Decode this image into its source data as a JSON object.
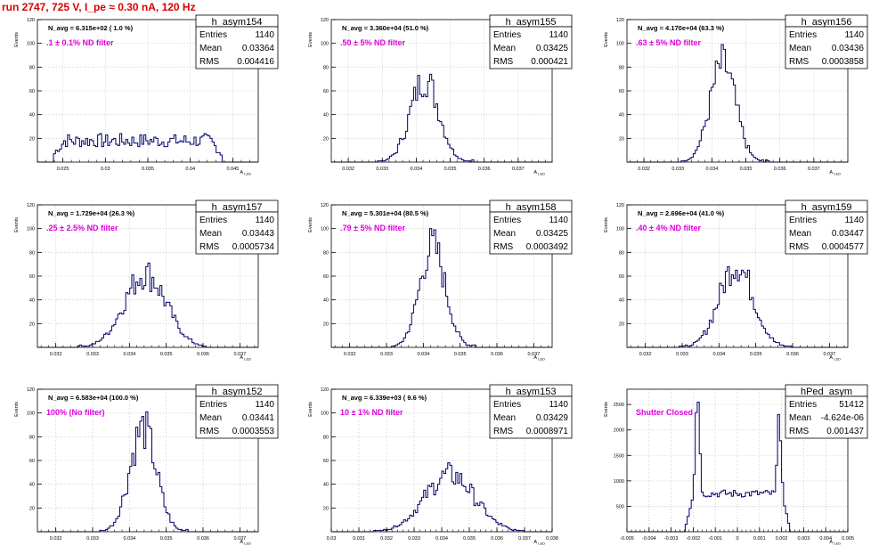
{
  "title": "run 2747,   725 V, I_pe ≈ 0.30 nA, 120 Hz",
  "colors": {
    "title": "#d60000",
    "histogram": "#00006e",
    "annotation": "#e000e0",
    "grid": "#c8c8c8",
    "frame": "#000000"
  },
  "stats_labels": [
    "Entries",
    "Mean",
    "RMS"
  ],
  "axis_label_y": "Events",
  "axis_label_x": "A",
  "axis_label_x_sub": "LED",
  "chart_data": [
    {
      "type": "histogram",
      "name": "h_asym154",
      "nav": "N_avg = 6.315e+02 ( 1.0 %)",
      "annotation": ".1 ± 0.1% ND filter",
      "stats": {
        "Entries": "1140",
        "Mean": "0.03364",
        "RMS": "0.004416"
      },
      "xlim": [
        0.022,
        0.048
      ],
      "ylim": [
        0,
        120
      ],
      "xticks": [
        "0.025",
        "0.03",
        "0.035",
        "0.04",
        "0.045"
      ],
      "xtick_values": [
        0.025,
        0.03,
        0.035,
        0.04,
        0.045
      ],
      "yticks": [
        "20",
        "40",
        "60",
        "80",
        "100",
        "120"
      ],
      "ytick_values": [
        20,
        40,
        60,
        80,
        100,
        120
      ],
      "shape": {
        "kind": "flat",
        "lo": 0.0238,
        "hi": 0.0438,
        "level": 18,
        "ripple": 6
      },
      "grid": true
    },
    {
      "type": "histogram",
      "name": "h_asym155",
      "nav": "N_avg = 3.360e+04 (51.0 %)",
      "annotation": ".50 ± 5% ND filter",
      "stats": {
        "Entries": "1140",
        "Mean": "0.03425",
        "RMS": "0.000421"
      },
      "xlim": [
        0.0315,
        0.038
      ],
      "ylim": [
        0,
        120
      ],
      "xticks": [
        "0.032",
        "0.033",
        "0.034",
        "0.035",
        "0.036",
        "0.037"
      ],
      "xtick_values": [
        0.032,
        0.033,
        0.034,
        0.035,
        0.036,
        0.037
      ],
      "yticks": [
        "20",
        "40",
        "60",
        "80",
        "100",
        "120"
      ],
      "ytick_values": [
        20,
        40,
        60,
        80,
        100,
        120
      ],
      "shape": {
        "kind": "gauss",
        "mean": 0.03425,
        "sigma": 0.00042,
        "peak": 70,
        "lo": 0.0328,
        "hi": 0.0357
      },
      "grid": true
    },
    {
      "type": "histogram",
      "name": "h_asym156",
      "nav": "N_avg = 4.170e+04 (63.3 %)",
      "annotation": ".63 ± 5% ND filter",
      "stats": {
        "Entries": "1140",
        "Mean": "0.03436",
        "RMS": "0.0003858"
      },
      "xlim": [
        0.0315,
        0.038
      ],
      "ylim": [
        0,
        120
      ],
      "xticks": [
        "0.032",
        "0.033",
        "0.034",
        "0.035",
        "0.036",
        "0.037"
      ],
      "xtick_values": [
        0.032,
        0.033,
        0.034,
        0.035,
        0.036,
        0.037
      ],
      "yticks": [
        "20",
        "40",
        "60",
        "80",
        "100",
        "120"
      ],
      "ytick_values": [
        20,
        40,
        60,
        80,
        100,
        120
      ],
      "shape": {
        "kind": "gauss",
        "mean": 0.03432,
        "sigma": 0.00038,
        "peak": 82,
        "lo": 0.0331,
        "hi": 0.0357
      },
      "grid": true
    },
    {
      "type": "histogram",
      "name": "h_asym157",
      "nav": "N_avg = 1.729e+04 (26.3 %)",
      "annotation": ".25 ± 2.5% ND filter",
      "stats": {
        "Entries": "1140",
        "Mean": "0.03443",
        "RMS": "0.0005734"
      },
      "xlim": [
        0.0315,
        0.0375
      ],
      "ylim": [
        0,
        120
      ],
      "xticks": [
        "0.032",
        "0.033",
        "0.034",
        "0.035",
        "0.036",
        "0.037"
      ],
      "xtick_values": [
        0.032,
        0.033,
        0.034,
        0.035,
        0.036,
        0.037
      ],
      "yticks": [
        "20",
        "40",
        "60",
        "80",
        "100",
        "120"
      ],
      "ytick_values": [
        20,
        40,
        60,
        80,
        100,
        120
      ],
      "shape": {
        "kind": "gauss",
        "mean": 0.03443,
        "sigma": 0.00057,
        "peak": 62,
        "lo": 0.0326,
        "hi": 0.0361
      },
      "grid": true
    },
    {
      "type": "histogram",
      "name": "h_asym158",
      "nav": "N_avg = 5.301e+04 (80.5 %)",
      "annotation": ".79 ± 5% ND filter",
      "stats": {
        "Entries": "1140",
        "Mean": "0.03425",
        "RMS": "0.0003492"
      },
      "xlim": [
        0.0315,
        0.0375
      ],
      "ylim": [
        0,
        120
      ],
      "xticks": [
        "0.032",
        "0.033",
        "0.034",
        "0.035",
        "0.036",
        "0.037"
      ],
      "xtick_values": [
        0.032,
        0.033,
        0.034,
        0.035,
        0.036,
        0.037
      ],
      "yticks": [
        "20",
        "40",
        "60",
        "80",
        "100",
        "120"
      ],
      "ytick_values": [
        20,
        40,
        60,
        80,
        100,
        120
      ],
      "shape": {
        "kind": "gauss",
        "mean": 0.03425,
        "sigma": 0.00035,
        "peak": 85,
        "lo": 0.0331,
        "hi": 0.0355
      },
      "grid": true
    },
    {
      "type": "histogram",
      "name": "h_asym159",
      "nav": "N_avg = 2.696e+04 (41.0 %)",
      "annotation": ".40 ± 4% ND filter",
      "stats": {
        "Entries": "1140",
        "Mean": "0.03447",
        "RMS": "0.0004577"
      },
      "xlim": [
        0.0315,
        0.0375
      ],
      "ylim": [
        0,
        120
      ],
      "xticks": [
        "0.032",
        "0.033",
        "0.034",
        "0.035",
        "0.036",
        "0.037"
      ],
      "xtick_values": [
        0.032,
        0.033,
        0.034,
        0.035,
        0.036,
        0.037
      ],
      "yticks": [
        "20",
        "40",
        "60",
        "80",
        "100",
        "120"
      ],
      "ytick_values": [
        20,
        40,
        60,
        80,
        100,
        120
      ],
      "shape": {
        "kind": "gauss",
        "mean": 0.03447,
        "sigma": 0.00046,
        "peak": 70,
        "lo": 0.0329,
        "hi": 0.036
      },
      "grid": true
    },
    {
      "type": "histogram",
      "name": "h_asym152",
      "nav": "N_avg = 6.583e+04 (100.0 %)",
      "annotation": "100% (No filter)",
      "stats": {
        "Entries": "1140",
        "Mean": "0.03441",
        "RMS": "0.0003553"
      },
      "xlim": [
        0.0315,
        0.0375
      ],
      "ylim": [
        0,
        120
      ],
      "xticks": [
        "0.032",
        "0.033",
        "0.034",
        "0.035",
        "0.036",
        "0.037"
      ],
      "xtick_values": [
        0.032,
        0.033,
        0.034,
        0.035,
        0.036,
        0.037
      ],
      "yticks": [
        "20",
        "40",
        "60",
        "80",
        "100",
        "120"
      ],
      "ytick_values": [
        20,
        40,
        60,
        80,
        100,
        120
      ],
      "shape": {
        "kind": "gauss",
        "mean": 0.03437,
        "sigma": 0.00036,
        "peak": 87,
        "lo": 0.0332,
        "hi": 0.0357
      },
      "grid": true
    },
    {
      "type": "histogram",
      "name": "h_asym153",
      "nav": "N_avg = 6.339e+03 ( 9.6 %)",
      "annotation": "10 ± 1% ND filter",
      "stats": {
        "Entries": "1140",
        "Mean": "0.03429",
        "RMS": "0.0008971"
      },
      "xlim": [
        0.03,
        0.038
      ],
      "ylim": [
        0,
        120
      ],
      "xticks": [
        "0.03",
        "0.031",
        "0.032",
        "0.033",
        "0.034",
        "0.035",
        "0.036",
        "0.037",
        "0.038"
      ],
      "xtick_values": [
        0.03,
        0.031,
        0.032,
        0.033,
        0.034,
        0.035,
        0.036,
        0.037,
        0.038
      ],
      "yticks": [
        "20",
        "40",
        "60",
        "80",
        "100",
        "120"
      ],
      "ytick_values": [
        20,
        40,
        60,
        80,
        100,
        120
      ],
      "shape": {
        "kind": "gauss",
        "mean": 0.03429,
        "sigma": 0.0009,
        "peak": 48,
        "lo": 0.0315,
        "hi": 0.037
      },
      "grid": true
    },
    {
      "type": "histogram",
      "name": "hPed_asym",
      "nav": "",
      "annotation": "Shutter Closed",
      "stats": {
        "Entries": "51412",
        "Mean": "-4.624e-06",
        "RMS": "0.001437"
      },
      "xlim": [
        -0.005,
        0.005
      ],
      "ylim": [
        0,
        2800
      ],
      "xticks": [
        "-0.005",
        "-0.004",
        "-0.003",
        "-0.002",
        "-0.001",
        "0",
        "0.001",
        "0.002",
        "0.003",
        "0.004",
        "0.005"
      ],
      "xtick_values": [
        -0.005,
        -0.004,
        -0.003,
        -0.002,
        -0.001,
        0,
        0.001,
        0.002,
        0.003,
        0.004,
        0.005
      ],
      "yticks": [
        "500",
        "1000",
        "1500",
        "2000",
        "2500"
      ],
      "ytick_values": [
        500,
        1000,
        1500,
        2000,
        2500
      ],
      "shape": {
        "kind": "bimodal",
        "lo": -0.0024,
        "hi": 0.0024,
        "p1": -0.0018,
        "p2": 0.0019,
        "h1": 2700,
        "h2": 2200,
        "base": 750
      },
      "grid": true
    }
  ]
}
